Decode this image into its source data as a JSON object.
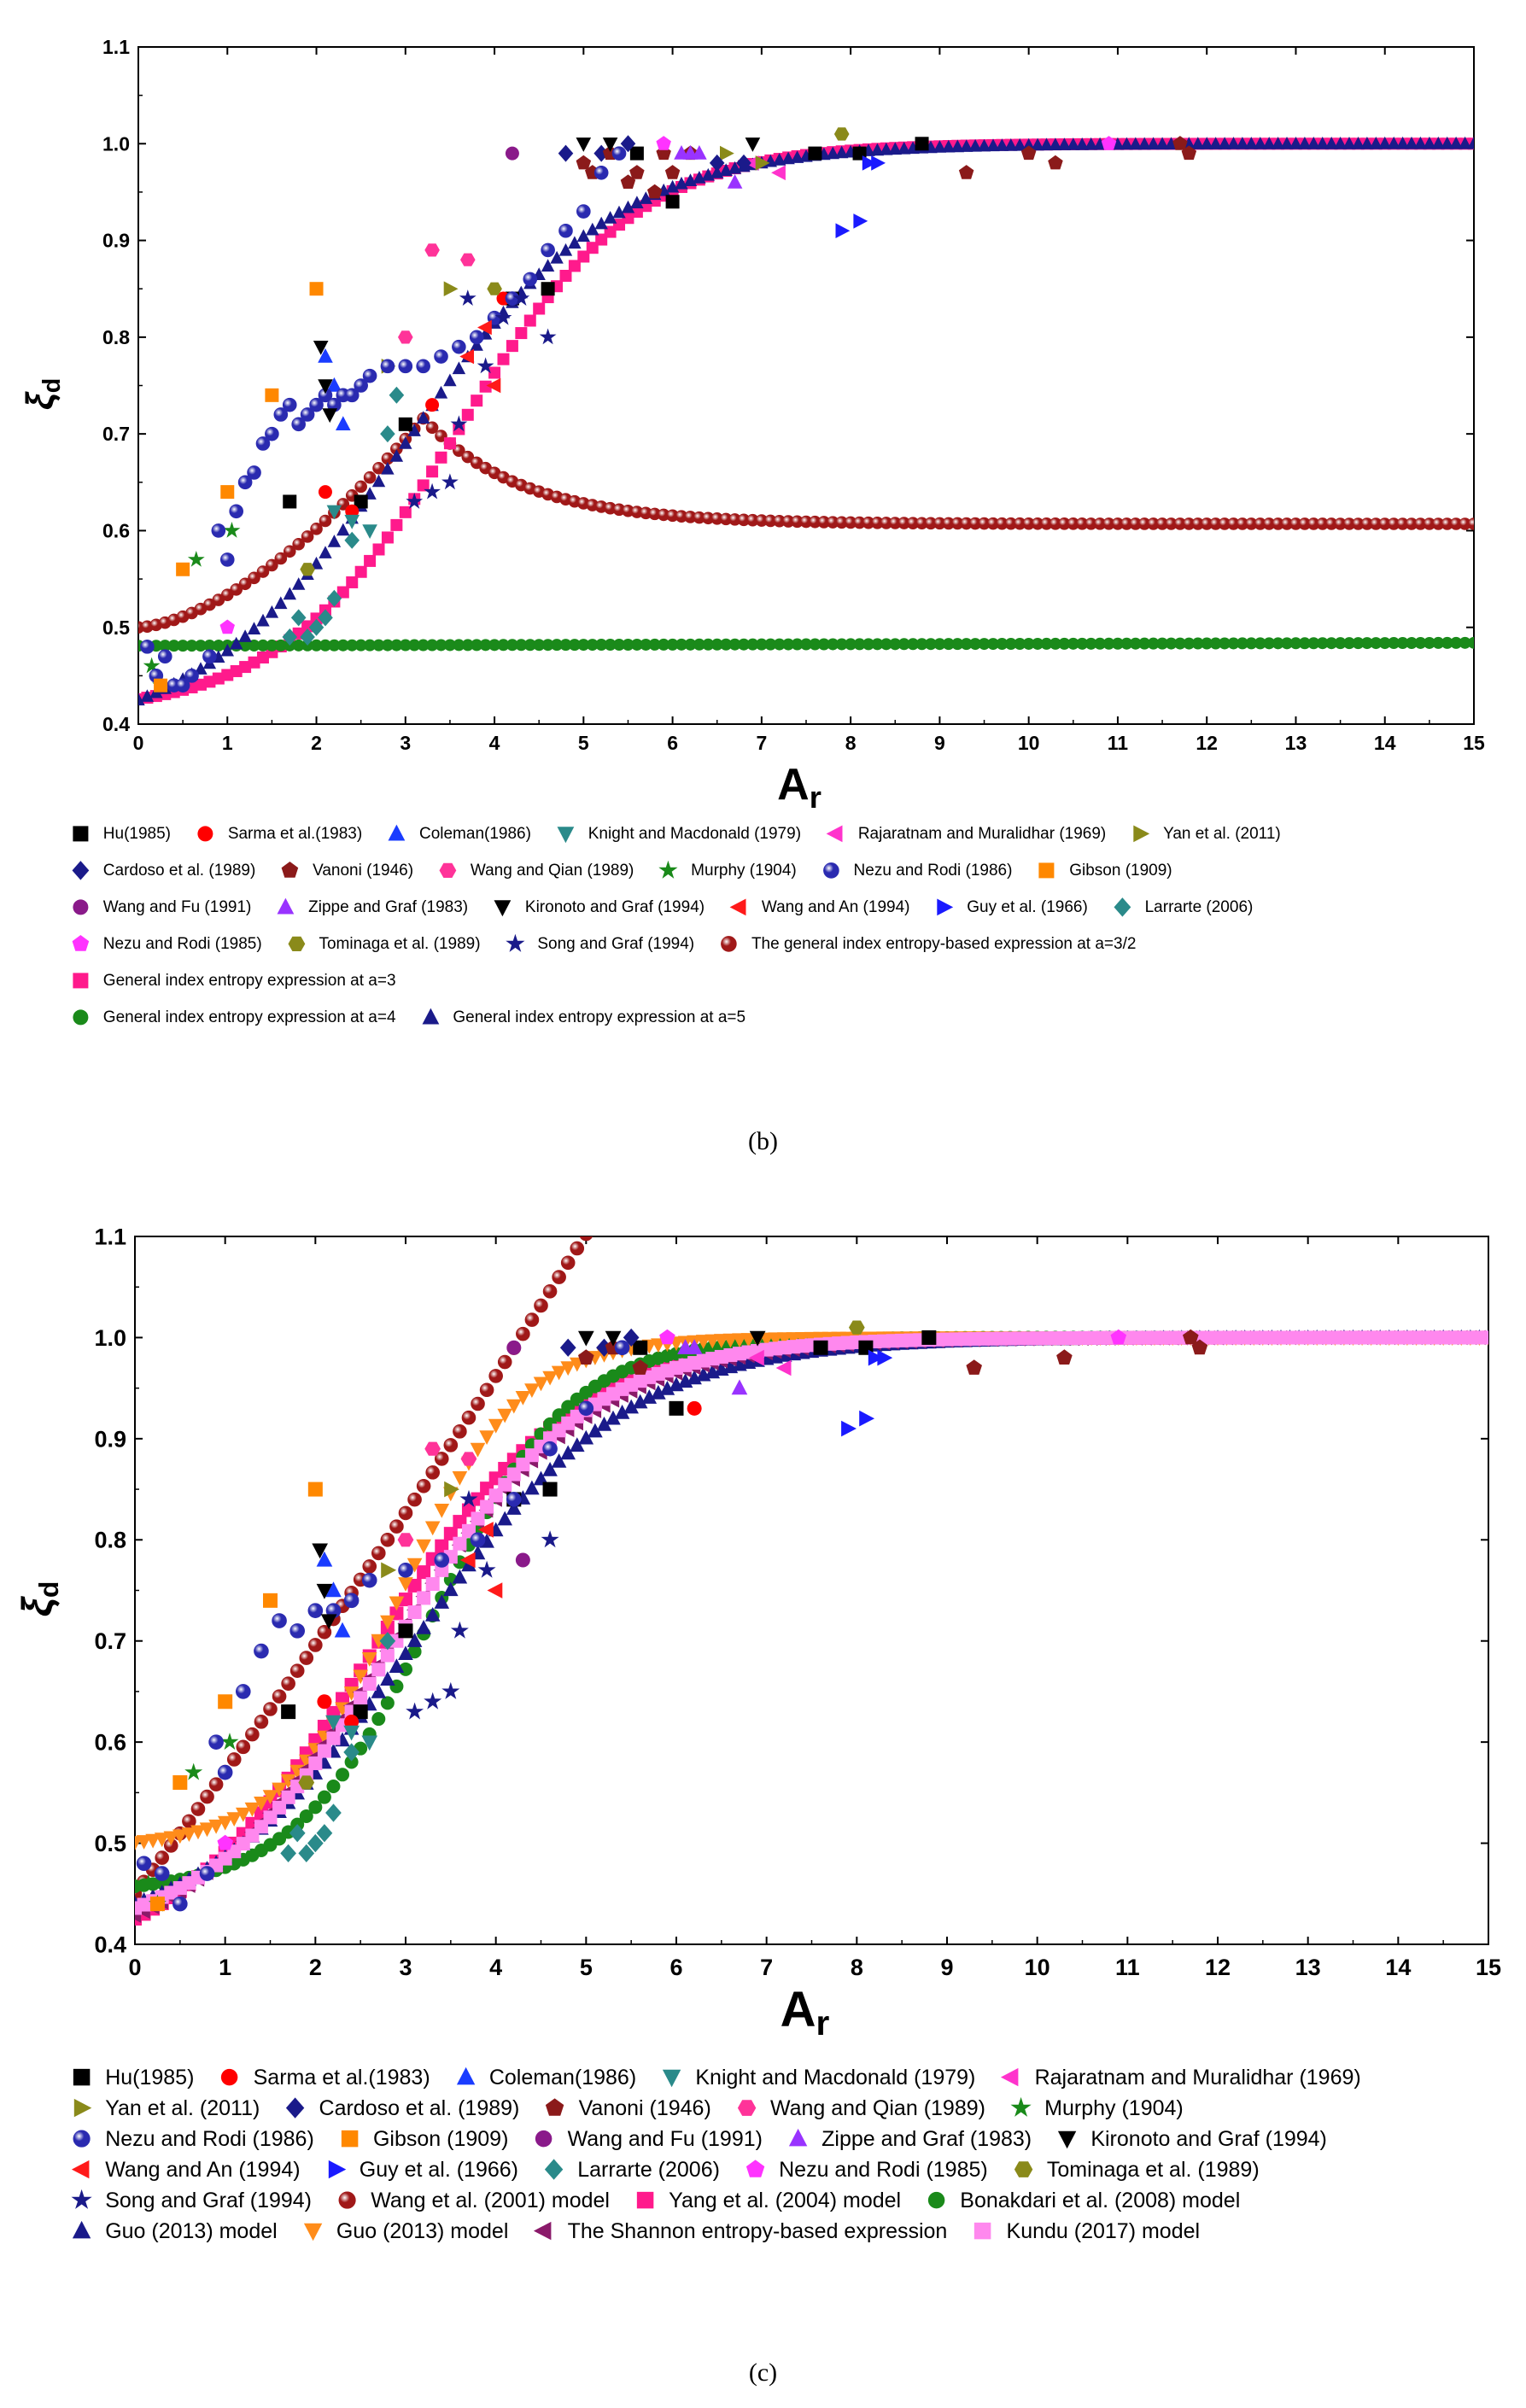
{
  "chart_data": [
    {
      "id": "b",
      "type": "scatter",
      "caption": "(b)",
      "xlabel": "A",
      "xlabel_sub": "r",
      "ylabel": "ξ",
      "ylabel_sub": "d",
      "xlim": [
        0,
        15
      ],
      "ylim": [
        0.4,
        1.1
      ],
      "xticks": [
        "0",
        "1",
        "2",
        "3",
        "4",
        "5",
        "6",
        "7",
        "8",
        "9",
        "10",
        "11",
        "12",
        "13",
        "14",
        "15"
      ],
      "yticks": [
        "0.4",
        "0.5",
        "0.6",
        "0.7",
        "0.8",
        "0.9",
        "1.0",
        "1.1"
      ],
      "series": [
        {
          "name": "Hu(1985)",
          "marker": "square",
          "color": "#000000",
          "x": [
            1.7,
            2.5,
            3.0,
            4.2,
            4.6,
            5.6,
            6.0,
            7.6,
            8.1,
            8.8
          ],
          "y": [
            0.63,
            0.63,
            0.71,
            0.84,
            0.85,
            0.99,
            0.94,
            0.99,
            0.99,
            1.0
          ]
        },
        {
          "name": "Sarma et al.(1983)",
          "marker": "circle",
          "color": "#ff0000",
          "x": [
            2.1,
            2.4,
            3.3,
            4.1
          ],
          "y": [
            0.64,
            0.62,
            0.73,
            0.84
          ]
        },
        {
          "name": "Coleman(1986)",
          "marker": "triangle-up",
          "color": "#1a3cff",
          "x": [
            2.1,
            2.2,
            2.3
          ],
          "y": [
            0.78,
            0.75,
            0.71
          ]
        },
        {
          "name": "Knight and Macdonald (1979)",
          "marker": "triangle-down",
          "color": "#2a8a8a",
          "x": [
            2.2,
            2.4,
            2.6
          ],
          "y": [
            0.62,
            0.61,
            0.6
          ]
        },
        {
          "name": "Rajaratnam and Muralidhar (1969)",
          "marker": "triangle-left",
          "color": "#ff33cc",
          "x": [
            6.9,
            7.2
          ],
          "y": [
            0.98,
            0.97
          ]
        },
        {
          "name": "Yan et al. (2011)",
          "marker": "triangle-right",
          "color": "#8a8a1a",
          "x": [
            2.8,
            3.5,
            6.6,
            7.0
          ],
          "y": [
            0.77,
            0.85,
            0.99,
            0.98
          ]
        },
        {
          "name": "Cardoso et al. (1989)",
          "marker": "diamond",
          "color": "#1a1a8a",
          "x": [
            4.8,
            5.2,
            5.5,
            6.5,
            6.8
          ],
          "y": [
            0.99,
            0.99,
            1.0,
            0.98,
            0.98
          ]
        },
        {
          "name": "Vanoni (1946)",
          "marker": "pentagon",
          "color": "#8b1a1a",
          "x": [
            5.0,
            5.1,
            5.3,
            5.5,
            5.6,
            5.8,
            5.9,
            6.0,
            6.2,
            9.3,
            10.0,
            10.3,
            11.7,
            11.8
          ],
          "y": [
            0.98,
            0.97,
            0.99,
            0.96,
            0.97,
            0.95,
            0.99,
            0.97,
            0.99,
            0.97,
            0.99,
            0.98,
            1.0,
            0.99
          ]
        },
        {
          "name": "Wang and Qian (1989)",
          "marker": "hexagon",
          "color": "#ff3399",
          "x": [
            3.0,
            3.3,
            3.7
          ],
          "y": [
            0.8,
            0.89,
            0.88
          ]
        },
        {
          "name": "Murphy (1904)",
          "marker": "star",
          "color": "#1a8a1a",
          "x": [
            0.15,
            0.25,
            0.65,
            1.05
          ],
          "y": [
            0.46,
            0.44,
            0.57,
            0.6
          ]
        },
        {
          "name": "Nezu and Rodi (1986)",
          "marker": "ball",
          "color": "#2a2ab0",
          "x": [
            0.1,
            0.2,
            0.3,
            0.4,
            0.5,
            0.6,
            0.8,
            0.9,
            1.0,
            1.1,
            1.2,
            1.3,
            1.4,
            1.5,
            1.6,
            1.7,
            1.8,
            1.9,
            2.0,
            2.1,
            2.2,
            2.3,
            2.4,
            2.5,
            2.6,
            2.8,
            3.0,
            3.2,
            3.4,
            3.6,
            3.8,
            4.0,
            4.2,
            4.4,
            4.6,
            4.8,
            5.0,
            5.2,
            5.4
          ],
          "y": [
            0.48,
            0.45,
            0.47,
            0.44,
            0.44,
            0.45,
            0.47,
            0.6,
            0.57,
            0.62,
            0.65,
            0.66,
            0.69,
            0.7,
            0.72,
            0.73,
            0.71,
            0.72,
            0.73,
            0.74,
            0.73,
            0.74,
            0.74,
            0.75,
            0.76,
            0.77,
            0.77,
            0.77,
            0.78,
            0.79,
            0.8,
            0.82,
            0.84,
            0.86,
            0.89,
            0.91,
            0.93,
            0.97,
            0.99
          ]
        },
        {
          "name": "Gibson (1909)",
          "marker": "square",
          "color": "#ff8800",
          "x": [
            0.25,
            0.5,
            1.0,
            1.5,
            2.0
          ],
          "y": [
            0.44,
            0.56,
            0.64,
            0.74,
            0.85
          ]
        },
        {
          "name": "Wang and Fu (1991)",
          "marker": "circle",
          "color": "#8a1a8a",
          "x": [
            4.2
          ],
          "y": [
            0.99
          ]
        },
        {
          "name": "Zippe and Graf (1983)",
          "marker": "triangle-up",
          "color": "#9933ff",
          "x": [
            6.1,
            6.2,
            6.3,
            6.7
          ],
          "y": [
            0.99,
            0.99,
            0.99,
            0.96
          ]
        },
        {
          "name": "Kironoto and Graf (1994)",
          "marker": "triangle-down",
          "color": "#000000",
          "x": [
            2.05,
            2.1,
            2.15,
            5.0,
            5.3,
            6.9
          ],
          "y": [
            0.79,
            0.75,
            0.72,
            1.0,
            1.0,
            1.0
          ]
        },
        {
          "name": "Wang and An (1994)",
          "marker": "triangle-left",
          "color": "#ff1a1a",
          "x": [
            3.7,
            3.9,
            4.0
          ],
          "y": [
            0.78,
            0.81,
            0.75
          ]
        },
        {
          "name": "Guy et al. (1966)",
          "marker": "triangle-right",
          "color": "#1a1aff",
          "x": [
            7.9,
            8.1,
            8.2,
            8.3
          ],
          "y": [
            0.91,
            0.92,
            0.98,
            0.98
          ]
        },
        {
          "name": "Larrarte (2006)",
          "marker": "diamond",
          "color": "#2a8a8a",
          "x": [
            1.7,
            1.8,
            1.9,
            2.0,
            2.1,
            2.2,
            2.4,
            2.8,
            2.9
          ],
          "y": [
            0.49,
            0.51,
            0.49,
            0.5,
            0.51,
            0.53,
            0.59,
            0.7,
            0.74
          ]
        },
        {
          "name": "Nezu and Rodi (1985)",
          "marker": "pentagon",
          "color": "#ff33ff",
          "x": [
            1.0,
            5.9,
            10.9
          ],
          "y": [
            0.5,
            1.0,
            1.0
          ]
        },
        {
          "name": "Tominaga et al. (1989)",
          "marker": "hexagon",
          "color": "#8a8a1a",
          "x": [
            1.9,
            4.0,
            7.9
          ],
          "y": [
            0.56,
            0.85,
            1.01
          ]
        },
        {
          "name": "Song and Graf (1994)",
          "marker": "star",
          "color": "#1a1a8a",
          "x": [
            3.1,
            3.3,
            3.5,
            3.6,
            3.7,
            3.9,
            4.1,
            4.3,
            4.6
          ],
          "y": [
            0.63,
            0.64,
            0.65,
            0.71,
            0.84,
            0.77,
            0.82,
            0.84,
            0.8
          ]
        },
        {
          "name": "The general index entropy-based expression at a=3/2",
          "marker": "ball",
          "color": "#a01818",
          "curve": "entropy32"
        },
        {
          "name": "General index entropy expression at a=3",
          "marker": "square",
          "color": "#ff1a8c",
          "curve": "entropy3"
        },
        {
          "name": "General index entropy expression at a=4",
          "marker": "circle",
          "color": "#1a8a1a",
          "curve": "entropy4"
        },
        {
          "name": "General index entropy expression at a=5",
          "marker": "triangle-up",
          "color": "#1a1a8a",
          "curve": "entropy5"
        }
      ]
    },
    {
      "id": "c",
      "type": "scatter",
      "caption": "(c)",
      "xlabel": "A",
      "xlabel_sub": "r",
      "ylabel": "ξ",
      "ylabel_sub": "d",
      "xlim": [
        0,
        15
      ],
      "ylim": [
        0.4,
        1.1
      ],
      "xticks": [
        "0",
        "1",
        "2",
        "3",
        "4",
        "5",
        "6",
        "7",
        "8",
        "9",
        "10",
        "11",
        "12",
        "13",
        "14",
        "15"
      ],
      "yticks": [
        "0.4",
        "0.5",
        "0.6",
        "0.7",
        "0.8",
        "0.9",
        "1.0",
        "1.1"
      ],
      "series": [
        {
          "name": "Hu(1985)",
          "marker": "square",
          "color": "#000000",
          "x": [
            1.7,
            2.5,
            3.0,
            4.2,
            4.6,
            5.6,
            6.0,
            7.6,
            8.1,
            8.8
          ],
          "y": [
            0.63,
            0.63,
            0.71,
            0.84,
            0.85,
            0.99,
            0.93,
            0.99,
            0.99,
            1.0
          ]
        },
        {
          "name": "Sarma et al.(1983)",
          "marker": "circle",
          "color": "#ff0000",
          "x": [
            2.1,
            2.4,
            6.2
          ],
          "y": [
            0.64,
            0.62,
            0.93
          ]
        },
        {
          "name": "Coleman(1986)",
          "marker": "triangle-up",
          "color": "#1a3cff",
          "x": [
            2.1,
            2.2,
            2.3
          ],
          "y": [
            0.78,
            0.75,
            0.71
          ]
        },
        {
          "name": "Knight and Macdonald (1979)",
          "marker": "triangle-down",
          "color": "#2a8a8a",
          "x": [
            2.2,
            2.4,
            2.6
          ],
          "y": [
            0.62,
            0.61,
            0.6
          ]
        },
        {
          "name": "Rajaratnam and Muralidhar (1969)",
          "marker": "triangle-left",
          "color": "#ff33cc",
          "x": [
            6.9,
            7.2
          ],
          "y": [
            0.98,
            0.97
          ]
        },
        {
          "name": "Yan et al. (2011)",
          "marker": "triangle-right",
          "color": "#8a8a1a",
          "x": [
            2.8,
            3.5
          ],
          "y": [
            0.77,
            0.85
          ]
        },
        {
          "name": "Cardoso et al. (1989)",
          "marker": "diamond",
          "color": "#1a1a8a",
          "x": [
            4.8,
            5.2,
            5.5
          ],
          "y": [
            0.99,
            0.99,
            1.0
          ]
        },
        {
          "name": "Vanoni (1946)",
          "marker": "pentagon",
          "color": "#8b1a1a",
          "x": [
            5.0,
            5.3,
            5.6,
            9.3,
            10.3,
            11.7,
            11.8
          ],
          "y": [
            0.98,
            0.99,
            0.97,
            0.97,
            0.98,
            1.0,
            0.99
          ]
        },
        {
          "name": "Wang and Qian (1989)",
          "marker": "hexagon",
          "color": "#ff3399",
          "x": [
            3.0,
            3.3,
            3.7
          ],
          "y": [
            0.8,
            0.89,
            0.88
          ]
        },
        {
          "name": "Murphy (1904)",
          "marker": "star",
          "color": "#1a8a1a",
          "x": [
            0.15,
            0.25,
            0.65,
            1.05
          ],
          "y": [
            0.46,
            0.44,
            0.57,
            0.6
          ]
        },
        {
          "name": "Nezu and Rodi (1986)",
          "marker": "ball",
          "color": "#2a2ab0",
          "x": [
            0.1,
            0.3,
            0.5,
            0.8,
            0.9,
            1.0,
            1.2,
            1.4,
            1.6,
            1.8,
            2.0,
            2.2,
            2.4,
            2.6,
            3.0,
            3.4,
            3.8,
            4.2,
            4.6,
            5.0,
            5.4
          ],
          "y": [
            0.48,
            0.47,
            0.44,
            0.47,
            0.6,
            0.57,
            0.65,
            0.69,
            0.72,
            0.71,
            0.73,
            0.73,
            0.74,
            0.76,
            0.77,
            0.78,
            0.8,
            0.84,
            0.89,
            0.93,
            0.99
          ]
        },
        {
          "name": "Gibson (1909)",
          "marker": "square",
          "color": "#ff8800",
          "x": [
            0.25,
            0.5,
            1.0,
            1.5,
            2.0
          ],
          "y": [
            0.44,
            0.56,
            0.64,
            0.74,
            0.85
          ]
        },
        {
          "name": "Wang and Fu (1991)",
          "marker": "circle",
          "color": "#8a1a8a",
          "x": [
            4.2,
            4.3
          ],
          "y": [
            0.99,
            0.78
          ]
        },
        {
          "name": "Zippe and Graf (1983)",
          "marker": "triangle-up",
          "color": "#9933ff",
          "x": [
            6.1,
            6.2,
            6.7
          ],
          "y": [
            0.99,
            0.99,
            0.95
          ]
        },
        {
          "name": "Kironoto and Graf (1994)",
          "marker": "triangle-down",
          "color": "#000000",
          "x": [
            2.05,
            2.1,
            2.15,
            5.0,
            5.3,
            6.9
          ],
          "y": [
            0.79,
            0.75,
            0.72,
            1.0,
            1.0,
            1.0
          ]
        },
        {
          "name": "Wang and An (1994)",
          "marker": "triangle-left",
          "color": "#ff1a1a",
          "x": [
            3.7,
            3.9,
            4.0
          ],
          "y": [
            0.78,
            0.81,
            0.75
          ]
        },
        {
          "name": "Guy et al. (1966)",
          "marker": "triangle-right",
          "color": "#1a1aff",
          "x": [
            7.9,
            8.1,
            8.2,
            8.3
          ],
          "y": [
            0.91,
            0.92,
            0.98,
            0.98
          ]
        },
        {
          "name": "Larrarte (2006)",
          "marker": "diamond",
          "color": "#2a8a8a",
          "x": [
            1.7,
            1.8,
            1.9,
            2.0,
            2.1,
            2.2,
            2.4,
            2.8
          ],
          "y": [
            0.49,
            0.51,
            0.49,
            0.5,
            0.51,
            0.53,
            0.59,
            0.7
          ]
        },
        {
          "name": "Nezu and Rodi (1985)",
          "marker": "pentagon",
          "color": "#ff33ff",
          "x": [
            1.0,
            5.9,
            10.9
          ],
          "y": [
            0.5,
            1.0,
            1.0
          ]
        },
        {
          "name": "Tominaga et al. (1989)",
          "marker": "hexagon",
          "color": "#8a8a1a",
          "x": [
            1.9,
            8.0
          ],
          "y": [
            0.56,
            1.01
          ]
        },
        {
          "name": "Song and Graf (1994)",
          "marker": "star",
          "color": "#1a1a8a",
          "x": [
            3.1,
            3.3,
            3.5,
            3.6,
            3.7,
            3.9,
            4.6
          ],
          "y": [
            0.63,
            0.64,
            0.65,
            0.71,
            0.84,
            0.77,
            0.8
          ]
        },
        {
          "name": "Wang et al. (2001) model",
          "marker": "ball",
          "color": "#a01818",
          "curve": "wang2001"
        },
        {
          "name": "Yang et al. (2004) model",
          "marker": "square",
          "color": "#ff1a8c",
          "curve": "yang2004"
        },
        {
          "name": "Bonakdari et al. (2008) model",
          "marker": "circle",
          "color": "#1a8a1a",
          "curve": "bonakdari"
        },
        {
          "name": "Guo (2013) model",
          "marker": "triangle-up",
          "color": "#1a1a8a",
          "curve": "guoA"
        },
        {
          "name": "Guo (2013) model",
          "marker": "triangle-down",
          "color": "#ff8c1a",
          "curve": "guoB"
        },
        {
          "name": "The Shannon entropy-based expression",
          "marker": "triangle-left",
          "color": "#8a1a6a",
          "curve": "shannon"
        },
        {
          "name": "Kundu (2017) model",
          "marker": "square",
          "color": "#ff88ee",
          "curve": "kundu"
        }
      ]
    }
  ]
}
